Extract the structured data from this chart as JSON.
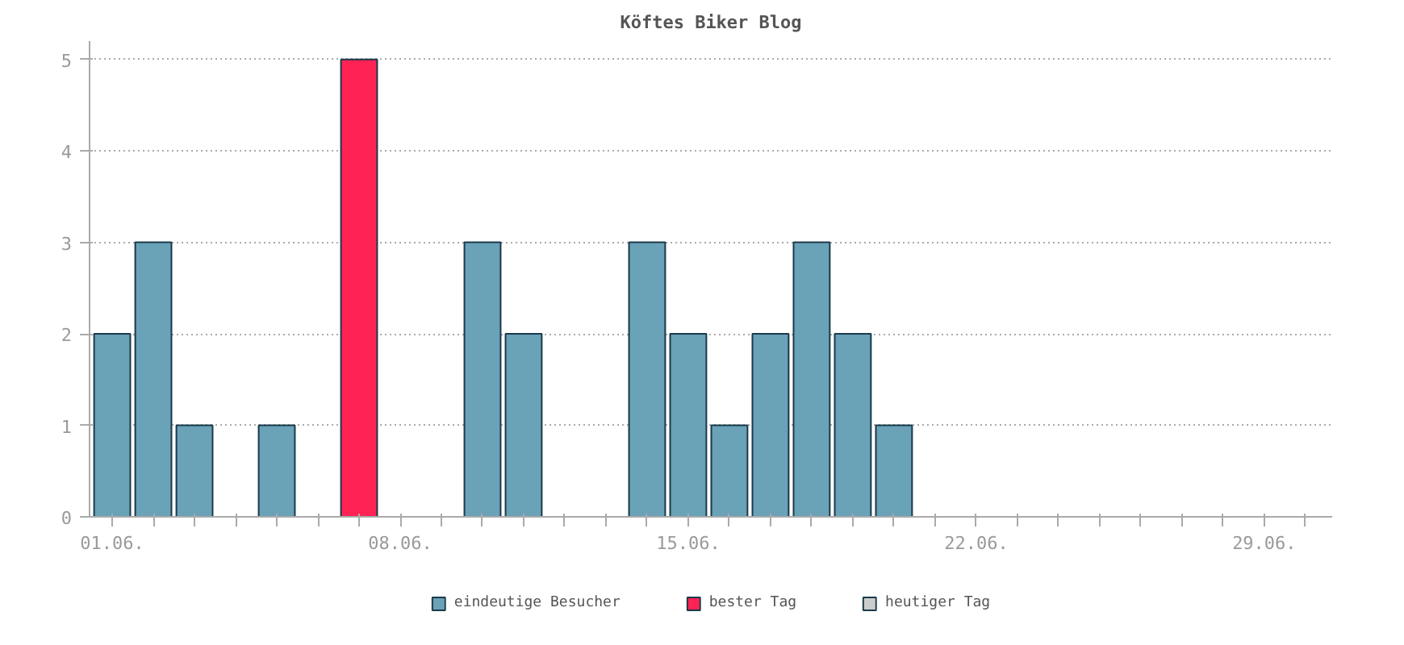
{
  "chart_data": {
    "type": "bar",
    "title": "Köftes Biker Blog",
    "categories": [
      "01.06.",
      null,
      null,
      null,
      null,
      null,
      null,
      "08.06.",
      null,
      null,
      null,
      null,
      null,
      null,
      "15.06.",
      null,
      null,
      null,
      null,
      null,
      null,
      "22.06.",
      null,
      null,
      null,
      null,
      null,
      null,
      "29.06.",
      null
    ],
    "series": [
      {
        "name": "eindeutige Besucher",
        "color": "#6aa2b8",
        "values": [
          2,
          3,
          1,
          0,
          1,
          0,
          null,
          0,
          0,
          3,
          2,
          0,
          0,
          3,
          2,
          1,
          2,
          3,
          2,
          1,
          0,
          0,
          0,
          0,
          0,
          0,
          0,
          0,
          0,
          0
        ]
      },
      {
        "name": "bester Tag",
        "color": "#ff2255",
        "values": [
          null,
          null,
          null,
          null,
          null,
          null,
          5,
          null,
          null,
          null,
          null,
          null,
          null,
          null,
          null,
          null,
          null,
          null,
          null,
          null,
          null,
          null,
          null,
          null,
          null,
          null,
          null,
          null,
          null,
          null
        ]
      },
      {
        "name": "heutiger Tag",
        "color": "#cccccc",
        "values": [
          null,
          null,
          null,
          null,
          null,
          null,
          null,
          null,
          null,
          null,
          null,
          null,
          null,
          null,
          null,
          null,
          null,
          null,
          null,
          null,
          null,
          null,
          null,
          null,
          null,
          null,
          null,
          null,
          null,
          null
        ]
      }
    ],
    "ylim": [
      0,
      5.2
    ],
    "yticks": [
      0,
      1,
      2,
      3,
      4,
      5
    ],
    "grid": "y",
    "legend": "bottom"
  }
}
